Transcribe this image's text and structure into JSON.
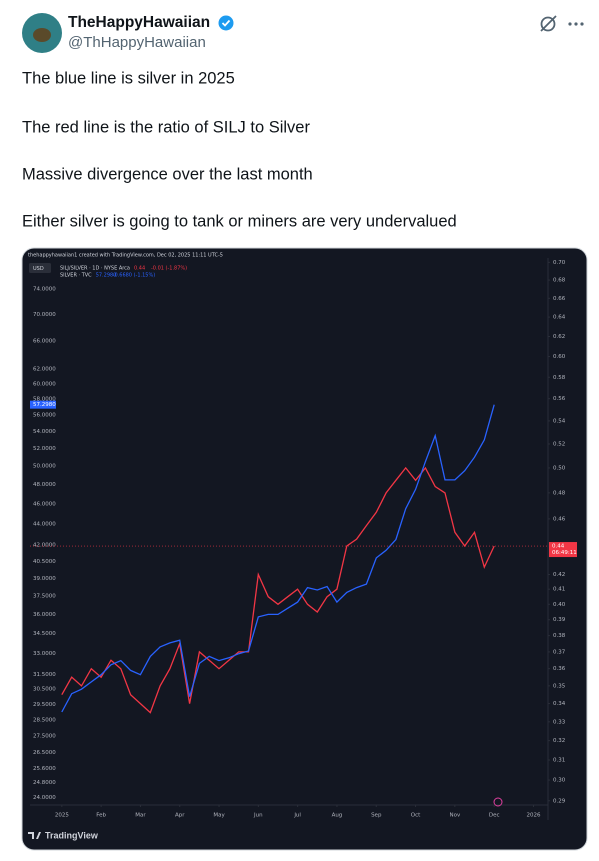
{
  "author": {
    "name": "TheHappyHawaiian",
    "handle": "@ThHappyHawaiian"
  },
  "tweet": {
    "paragraphs": [
      "The blue line is silver in 2025",
      "The red line is the ratio of SILJ to Silver",
      "Massive divergence over the last month",
      "Either silver is going to tank or miners are very undervalued"
    ]
  },
  "chart": {
    "type": "line",
    "header": "thehappyhawaiian1 created with TradingView.com, Dec 02, 2025 11:11 UTC-5",
    "currency": "USD",
    "log_scale": true,
    "watermark": "TradingView",
    "xlim": [
      -0.81,
      12.37
    ],
    "xticks": [
      {
        "value": 0,
        "label": "2025"
      },
      {
        "value": 1,
        "label": "Feb"
      },
      {
        "value": 2,
        "label": "Mar"
      },
      {
        "value": 3,
        "label": "Apr"
      },
      {
        "value": 4,
        "label": "May"
      },
      {
        "value": 5,
        "label": "Jun"
      },
      {
        "value": 6,
        "label": "Jul"
      },
      {
        "value": 7,
        "label": "Aug"
      },
      {
        "value": 8,
        "label": "Sep"
      },
      {
        "value": 9,
        "label": "Oct"
      },
      {
        "value": 10,
        "label": "Nov"
      },
      {
        "value": 11,
        "label": "Dec"
      },
      {
        "value": 12,
        "label": "2026"
      }
    ],
    "ylim": [
      23.6,
      79.3
    ],
    "yticks": [
      {
        "value": 74,
        "label": "74.0000"
      },
      {
        "value": 70,
        "label": "70.0000"
      },
      {
        "value": 66,
        "label": "66.0000"
      },
      {
        "value": 62,
        "label": "62.0000"
      },
      {
        "value": 60,
        "label": "60.0000"
      },
      {
        "value": 58,
        "label": "58.0000"
      },
      {
        "value": 56,
        "label": "56.0000"
      },
      {
        "value": 54,
        "label": "54.0000"
      },
      {
        "value": 52,
        "label": "52.0000"
      },
      {
        "value": 50,
        "label": "50.0000"
      },
      {
        "value": 48,
        "label": "48.0000"
      },
      {
        "value": 46,
        "label": "46.0000"
      },
      {
        "value": 44,
        "label": "44.0000"
      },
      {
        "value": 42,
        "label": "42.0000"
      },
      {
        "value": 40.5,
        "label": "40.5000"
      },
      {
        "value": 39,
        "label": "39.0000"
      },
      {
        "value": 37.5,
        "label": "37.5000"
      },
      {
        "value": 36,
        "label": "36.0000"
      },
      {
        "value": 34.5,
        "label": "34.5000"
      },
      {
        "value": 33,
        "label": "33.0000"
      },
      {
        "value": 31.5,
        "label": "31.5000"
      },
      {
        "value": 30.5,
        "label": "30.5000"
      },
      {
        "value": 29.5,
        "label": "29.5000"
      },
      {
        "value": 28.5,
        "label": "28.5000"
      },
      {
        "value": 27.5,
        "label": "27.5000"
      },
      {
        "value": 26.5,
        "label": "26.5000"
      },
      {
        "value": 25.6,
        "label": "25.6000"
      },
      {
        "value": 24.8,
        "label": "24.8000"
      },
      {
        "value": 24,
        "label": "24.0000"
      }
    ],
    "y2lim": [
      0.288,
      0.705
    ],
    "y2ticks": [
      {
        "value": 0.7,
        "label": "0.70"
      },
      0.68,
      0.66,
      0.64,
      0.62,
      {
        "value": 0.6,
        "label": "0.60"
      },
      0.58,
      0.56,
      0.54,
      0.52,
      {
        "value": 0.5,
        "label": "0.50"
      },
      0.48,
      0.46,
      0.42,
      0.41,
      {
        "value": 0.4,
        "label": "0.40"
      },
      0.39,
      0.38,
      0.37,
      0.36,
      0.35,
      0.34,
      0.33,
      0.32,
      0.31,
      {
        "value": 0.3,
        "label": "0.30"
      },
      0.29
    ],
    "x": [
      0,
      0.25,
      0.5,
      0.75,
      1,
      1.25,
      1.5,
      1.75,
      2,
      2.25,
      2.5,
      2.75,
      3,
      3.25,
      3.5,
      3.75,
      4,
      4.25,
      4.5,
      4.75,
      5,
      5.25,
      5.5,
      5.75,
      6,
      6.25,
      6.5,
      6.75,
      7,
      7.25,
      7.5,
      7.75,
      8,
      8.25,
      8.5,
      8.75,
      9,
      9.25,
      9.5,
      9.75,
      10,
      10.25,
      10.5,
      10.75,
      11
    ],
    "series": [
      {
        "name": "SILJ/SILVER · 1D · NYSE Arca",
        "color": "#f23645",
        "axis": "y2",
        "legend_value": "0.44",
        "legend_change": "-0.01 (-1.87%)",
        "tag": {
          "value": 0.44,
          "label": "0.44",
          "countdown": "06:49:11"
        },
        "values": [
          0.345,
          0.355,
          0.35,
          0.36,
          0.355,
          0.365,
          0.36,
          0.345,
          0.34,
          0.335,
          0.35,
          0.36,
          0.375,
          0.34,
          0.37,
          0.365,
          0.36,
          0.365,
          0.37,
          0.37,
          0.42,
          0.405,
          0.4,
          0.405,
          0.41,
          0.4,
          0.395,
          0.405,
          0.41,
          0.44,
          0.445,
          0.455,
          0.465,
          0.48,
          0.49,
          0.5,
          0.49,
          0.5,
          0.485,
          0.48,
          0.45,
          0.44,
          0.45,
          0.425,
          0.44
        ]
      },
      {
        "name": "SILVER · TVC",
        "color": "#2962ff",
        "axis": "y",
        "legend_value": "57.2980",
        "legend_change": "-0.6680 (-1.15%)",
        "tag": {
          "value": 57.298,
          "label": "57.2980"
        },
        "values": [
          29.0,
          30.2,
          30.5,
          31.0,
          31.5,
          32.2,
          32.5,
          31.8,
          31.5,
          32.8,
          33.5,
          33.8,
          34.0,
          30.0,
          32.3,
          32.8,
          32.5,
          32.7,
          33.0,
          33.2,
          35.8,
          36.0,
          36.0,
          36.5,
          37.0,
          38.2,
          38.0,
          38.3,
          37.0,
          37.8,
          38.2,
          38.5,
          40.8,
          41.5,
          42.5,
          45.5,
          47.5,
          50.5,
          53.5,
          48.5,
          48.5,
          49.5,
          51.0,
          53.0,
          57.3
        ]
      }
    ]
  }
}
